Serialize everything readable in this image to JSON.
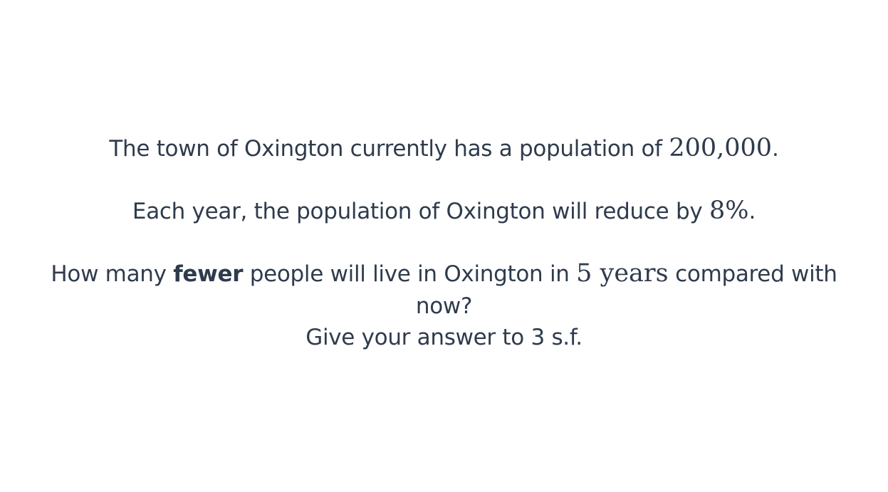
{
  "question": {
    "line1": {
      "text_before": "The town of Oxington currently has a population of ",
      "math_value": "200,000",
      "text_after": "."
    },
    "line2": {
      "text_before": "Each year, the population of Oxington will reduce by ",
      "math_value": "8%",
      "text_after": "."
    },
    "line3": {
      "text_before": "How many ",
      "bold_word": "fewer",
      "text_middle": " people will live in Oxington in ",
      "math_value": "5 years",
      "text_after": " compared with"
    },
    "line4": {
      "text": "now?"
    },
    "line5": {
      "text": "Give your answer to 3 s.f."
    }
  }
}
